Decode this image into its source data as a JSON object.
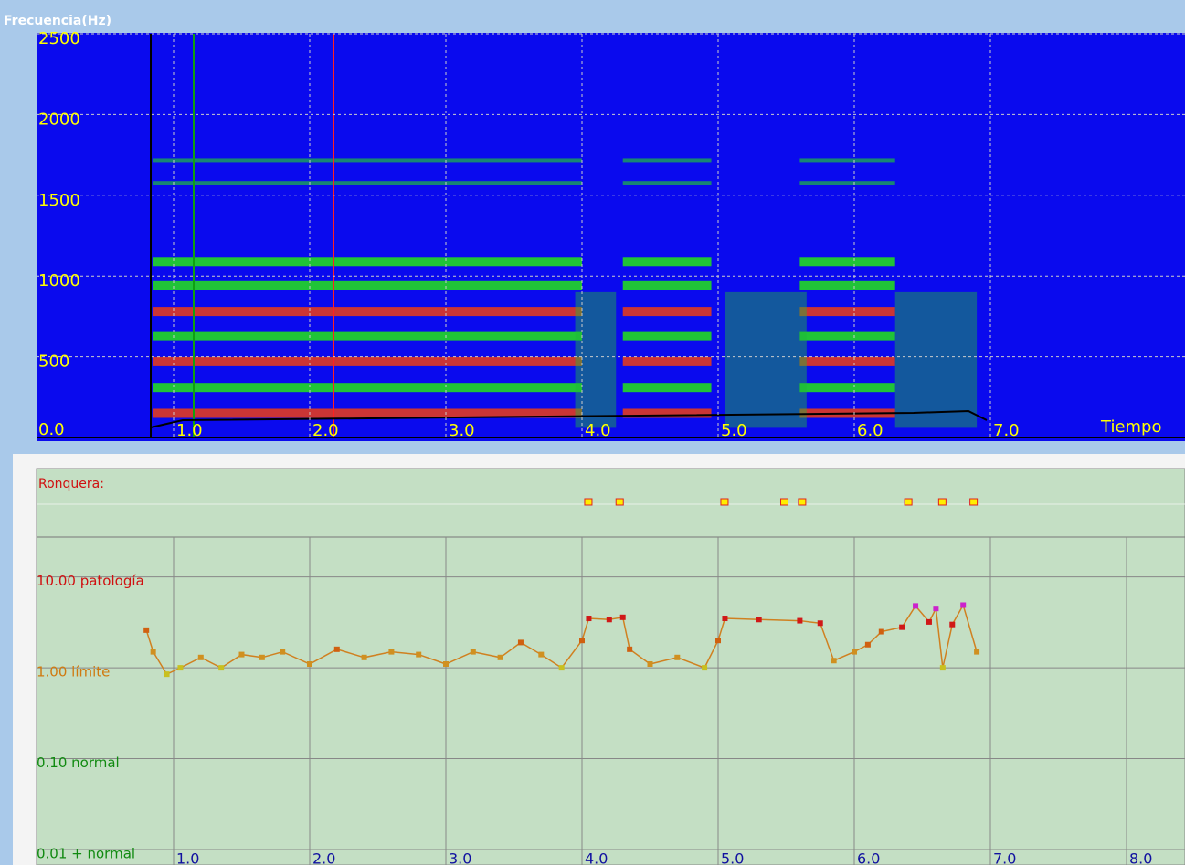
{
  "window": {
    "title": "Frecuencia(Hz)"
  },
  "spectrogram": {
    "ylim": [
      0,
      2500
    ],
    "yticks": [
      {
        "value": 0,
        "label": "0.0"
      },
      500,
      1000,
      1500,
      2000,
      2500
    ],
    "xlim": [
      0,
      8.43
    ],
    "xticks": [
      {
        "value": 1,
        "label": "1.0"
      },
      {
        "value": 2,
        "label": "2.0"
      },
      {
        "value": 3,
        "label": "3.0"
      },
      {
        "value": 4,
        "label": "4.0"
      },
      {
        "value": 5,
        "label": "5.0"
      },
      {
        "value": 6,
        "label": "6.0"
      },
      {
        "value": 7,
        "label": "7.0"
      }
    ],
    "x_label": "Tiempo",
    "grid": true
  },
  "hoarseness": {
    "type": "scatter",
    "label": "Ronquera:",
    "log_scale": true,
    "ylim": [
      0.01,
      27.5
    ],
    "yticks": [
      {
        "value": 10,
        "label": "10.00 patología"
      },
      {
        "value": 1,
        "label": "1.00 límite"
      },
      {
        "value": 0.1,
        "label": "0.10 normal"
      },
      {
        "value": 0.01,
        "label": "0.01 + normal"
      }
    ],
    "tick_colors": [
      "#d01010",
      "#d07a10",
      "#108a10",
      "#108a10"
    ],
    "xlim": [
      0,
      8.43
    ],
    "xticks": [
      {
        "value": 1,
        "label": "1.0"
      },
      {
        "value": 2,
        "label": "2.0"
      },
      {
        "value": 3,
        "label": "3.0"
      },
      {
        "value": 4,
        "label": "4.0"
      },
      {
        "value": 5,
        "label": "5.0"
      },
      {
        "value": 6,
        "label": "6.0"
      },
      {
        "value": 7,
        "label": "7.0"
      },
      {
        "value": 8,
        "label": "8.0"
      }
    ],
    "events": [
      4.04,
      4.27,
      5.04,
      5.48,
      5.61,
      6.39,
      6.64,
      6.87
    ],
    "x": [
      0.8,
      0.85,
      0.95,
      1.05,
      1.2,
      1.35,
      1.5,
      1.65,
      1.8,
      2.0,
      2.2,
      2.4,
      2.6,
      2.8,
      3.0,
      3.2,
      3.4,
      3.55,
      3.7,
      3.85,
      4.0,
      4.05,
      4.2,
      4.3,
      4.35,
      4.5,
      4.7,
      4.9,
      5.0,
      5.05,
      5.3,
      5.6,
      5.75,
      5.85,
      6.0,
      6.1,
      6.2,
      6.35,
      6.45,
      6.55,
      6.6,
      6.65,
      6.72,
      6.8,
      6.9
    ],
    "values": [
      2.6,
      1.5,
      0.85,
      1.0,
      1.3,
      1.0,
      1.4,
      1.3,
      1.5,
      1.1,
      1.6,
      1.3,
      1.5,
      1.4,
      1.1,
      1.5,
      1.3,
      1.9,
      1.4,
      1.0,
      2.0,
      3.5,
      3.4,
      3.6,
      1.6,
      1.1,
      1.3,
      1.0,
      2.0,
      3.5,
      3.4,
      3.3,
      3.1,
      1.2,
      1.5,
      1.8,
      2.5,
      2.8,
      4.8,
      3.2,
      4.5,
      1.0,
      3.0,
      4.9,
      1.5
    ]
  }
}
